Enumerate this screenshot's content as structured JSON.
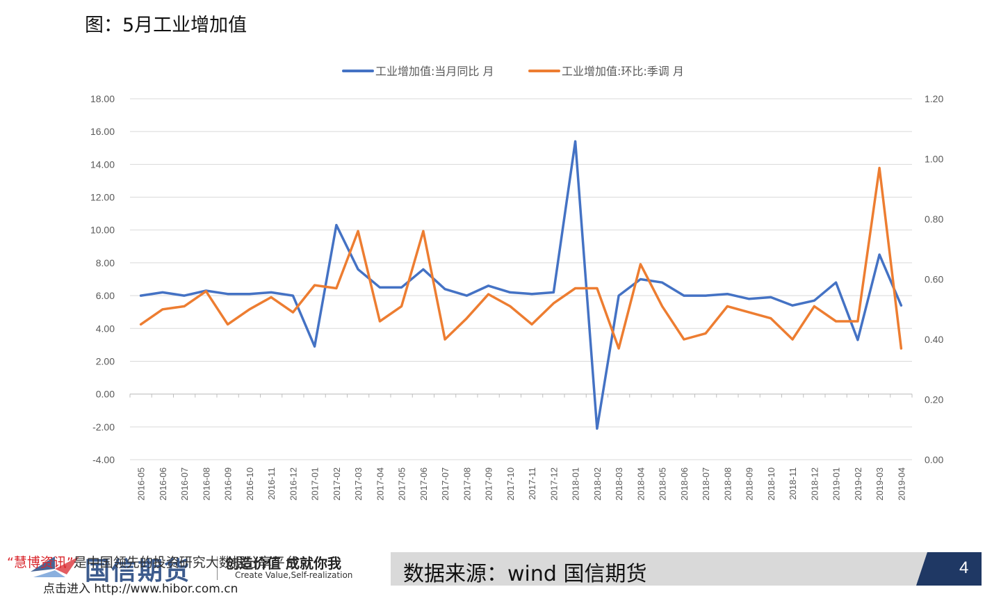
{
  "page": {
    "title": "图：5月工业增加值",
    "source": "数据来源：wind 国信期货",
    "page_number": "4"
  },
  "footer": {
    "watermark_brand": "“慧博资讯”",
    "watermark_text": "是中国领先的投资研究大数据分享平台",
    "watermark_link": "点击进入 http://www.hibor.com.cn",
    "logo_text": "国信期货",
    "slogan": "创造价值 成就你我",
    "slogan_en": "Create Value,Self-realization"
  },
  "colors": {
    "series1": "#4472C4",
    "series2": "#ED7D31",
    "grid": "#D9D9D9",
    "axis_text": "#595959",
    "band": "#D9D9D9",
    "band_dark": "#1F3864"
  },
  "chart_data": {
    "type": "line",
    "title": "",
    "legend_position": "top-center",
    "grid": true,
    "x": [
      "2016-05",
      "2016-06",
      "2016-07",
      "2016-08",
      "2016-09",
      "2016-10",
      "2016-11",
      "2016-12",
      "2017-01",
      "2017-02",
      "2017-03",
      "2017-04",
      "2017-05",
      "2017-06",
      "2017-07",
      "2017-08",
      "2017-09",
      "2017-10",
      "2017-11",
      "2017-12",
      "2018-01",
      "2018-02",
      "2018-03",
      "2018-04",
      "2018-05",
      "2018-06",
      "2018-07",
      "2018-08",
      "2018-09",
      "2018-10",
      "2018-11",
      "2018-12",
      "2019-01",
      "2019-02",
      "2019-03",
      "2019-04"
    ],
    "y_left": {
      "range": [
        -4,
        18
      ],
      "ticks": [
        "-4.00",
        "-2.00",
        "0.00",
        "2.00",
        "4.00",
        "6.00",
        "8.00",
        "10.00",
        "12.00",
        "14.00",
        "16.00",
        "18.00"
      ]
    },
    "y_right": {
      "range": [
        0,
        1.2
      ],
      "ticks": [
        "0.00",
        "0.20",
        "0.40",
        "0.60",
        "0.80",
        "1.00",
        "1.20"
      ]
    },
    "series": [
      {
        "name": "工业增加值:当月同比 月",
        "axis": "left",
        "color": "#4472C4",
        "values": [
          6.0,
          6.2,
          6.0,
          6.3,
          6.1,
          6.1,
          6.2,
          6.0,
          2.9,
          10.3,
          7.6,
          6.5,
          6.5,
          7.6,
          6.4,
          6.0,
          6.6,
          6.2,
          6.1,
          6.2,
          15.4,
          -2.1,
          6.0,
          7.0,
          6.8,
          6.0,
          6.0,
          6.1,
          5.8,
          5.9,
          5.4,
          5.7,
          6.8,
          3.3,
          8.5,
          5.4
        ]
      },
      {
        "name": "工业增加值:环比:季调 月",
        "axis": "right",
        "color": "#ED7D31",
        "values": [
          0.45,
          0.5,
          0.51,
          0.56,
          0.45,
          0.5,
          0.54,
          0.49,
          0.58,
          0.57,
          0.76,
          0.46,
          0.51,
          0.76,
          0.4,
          0.47,
          0.55,
          0.51,
          0.45,
          0.52,
          0.57,
          0.57,
          0.37,
          0.65,
          0.51,
          0.4,
          0.42,
          0.51,
          0.49,
          0.47,
          0.4,
          0.51,
          0.46,
          0.46,
          0.97,
          0.37
        ]
      }
    ]
  }
}
